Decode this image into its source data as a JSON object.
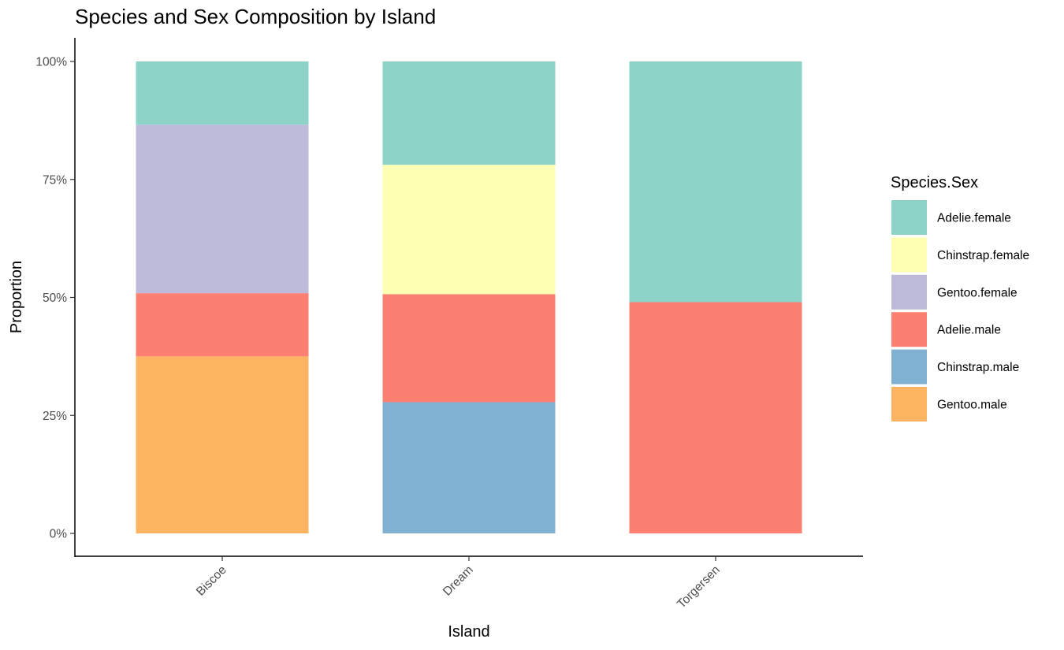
{
  "chart_data": {
    "type": "bar",
    "stacked": true,
    "normalized": true,
    "title": "Species and Sex Composition by Island",
    "xlabel": "Island",
    "ylabel": "Proportion",
    "ylim": [
      0,
      1
    ],
    "y_ticks": [
      "0%",
      "25%",
      "50%",
      "75%",
      "100%"
    ],
    "grid": false,
    "legend_position": "right",
    "legend_title": "Species.Sex",
    "categories": [
      "Biscoe",
      "Dream",
      "Torgersen"
    ],
    "series": [
      {
        "name": "Adelie.female",
        "color": "#8DD3C7",
        "values": [
          0.134,
          0.219,
          0.51
        ]
      },
      {
        "name": "Chinstrap.female",
        "color": "#FFFFB3",
        "values": [
          0.0,
          0.274,
          0.0
        ]
      },
      {
        "name": "Gentoo.female",
        "color": "#BEBADA",
        "values": [
          0.357,
          0.0,
          0.0
        ]
      },
      {
        "name": "Adelie.male",
        "color": "#FB8072",
        "values": [
          0.134,
          0.229,
          0.49
        ]
      },
      {
        "name": "Chinstrap.male",
        "color": "#80B1D3",
        "values": [
          0.0,
          0.278,
          0.0
        ]
      },
      {
        "name": "Gentoo.male",
        "color": "#FDB462",
        "values": [
          0.375,
          0.0,
          0.0
        ]
      }
    ]
  }
}
